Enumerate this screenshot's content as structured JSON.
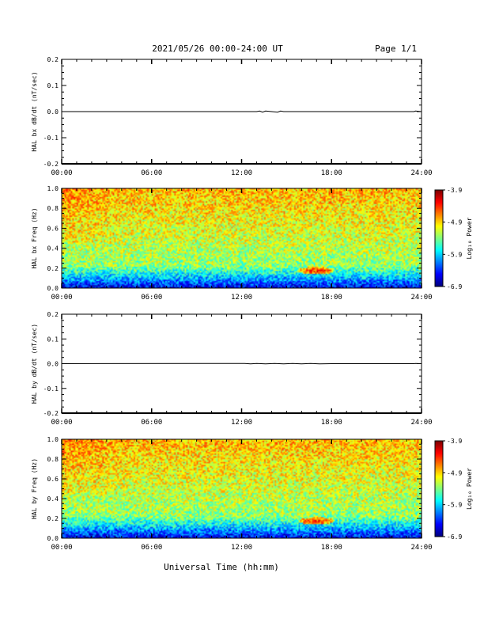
{
  "header": {
    "title": "2021/05/26  00:00-24:00 UT",
    "page": "Page 1/1"
  },
  "footer": {
    "xlabel": "Universal Time (hh:mm)"
  },
  "chart_data": [
    {
      "type": "line",
      "name": "bx-derivative",
      "ylabel": "HAL bx dB/dt (nT/sec)",
      "x_ticks": [
        "00:00",
        "06:00",
        "12:00",
        "18:00",
        "24:00"
      ],
      "xlim": [
        0,
        24
      ],
      "ylim": [
        -0.2,
        0.2
      ],
      "y_ticks": [
        "0.2",
        "0.1",
        "0.0",
        "-0.1",
        "-0.2"
      ],
      "series": [
        {
          "x": [
            0,
            13.0,
            13.2,
            13.4,
            13.6,
            14.0,
            14.4,
            14.6,
            14.8,
            23.5,
            23.6,
            24
          ],
          "y": [
            0,
            0,
            0.002,
            -0.002,
            0.002,
            0,
            -0.002,
            0.002,
            0,
            0,
            0.002,
            0
          ]
        }
      ]
    },
    {
      "type": "heatmap",
      "name": "bx-spectrogram",
      "ylabel": "HAL bx Freq (Hz)",
      "x_ticks": [
        "00:00",
        "06:00",
        "12:00",
        "18:00",
        "24:00"
      ],
      "xlim": [
        0,
        24
      ],
      "ylim": [
        0,
        1.0
      ],
      "y_ticks": [
        "1.0",
        "0.8",
        "0.6",
        "0.4",
        "0.2",
        "0.0"
      ],
      "colorbar": {
        "label": "Log₁₀ Power",
        "ticks": [
          "-3.9",
          "-4.9",
          "-5.9",
          "-6.9"
        ],
        "range": [
          -6.9,
          -3.9
        ]
      },
      "features": [
        {
          "x": 17.0,
          "y": 0.17
        }
      ]
    },
    {
      "type": "line",
      "name": "by-derivative",
      "ylabel": "HAL by dB/dt (nT/sec)",
      "x_ticks": [
        "00:00",
        "06:00",
        "12:00",
        "18:00",
        "24:00"
      ],
      "xlim": [
        0,
        24
      ],
      "ylim": [
        -0.2,
        0.2
      ],
      "y_ticks": [
        "0.2",
        "0.1",
        "0.0",
        "-0.1",
        "-0.2"
      ],
      "series": [
        {
          "x": [
            0,
            12.2,
            12.6,
            13.0,
            13.6,
            14.2,
            14.8,
            15.4,
            16.0,
            16.6,
            17.2,
            18.0,
            23.5,
            23.6,
            24
          ],
          "y": [
            0,
            0.001,
            -0.001,
            0.001,
            -0.001,
            0.001,
            -0.001,
            0.001,
            -0.001,
            0.001,
            -0.001,
            0,
            0,
            0.001,
            0
          ]
        }
      ]
    },
    {
      "type": "heatmap",
      "name": "by-spectrogram",
      "ylabel": "HAL by Freq (Hz)",
      "x_ticks": [
        "00:00",
        "06:00",
        "12:00",
        "18:00",
        "24:00"
      ],
      "xlim": [
        0,
        24
      ],
      "ylim": [
        0,
        1.0
      ],
      "y_ticks": [
        "1.0",
        "0.8",
        "0.6",
        "0.4",
        "0.2",
        "0.0"
      ],
      "colorbar": {
        "label": "Log₁₀ Power",
        "ticks": [
          "-3.9",
          "-4.9",
          "-5.9",
          "-6.9"
        ],
        "range": [
          -6.9,
          -3.9
        ]
      },
      "features": [
        {
          "x": 17.0,
          "y": 0.17
        }
      ]
    }
  ]
}
